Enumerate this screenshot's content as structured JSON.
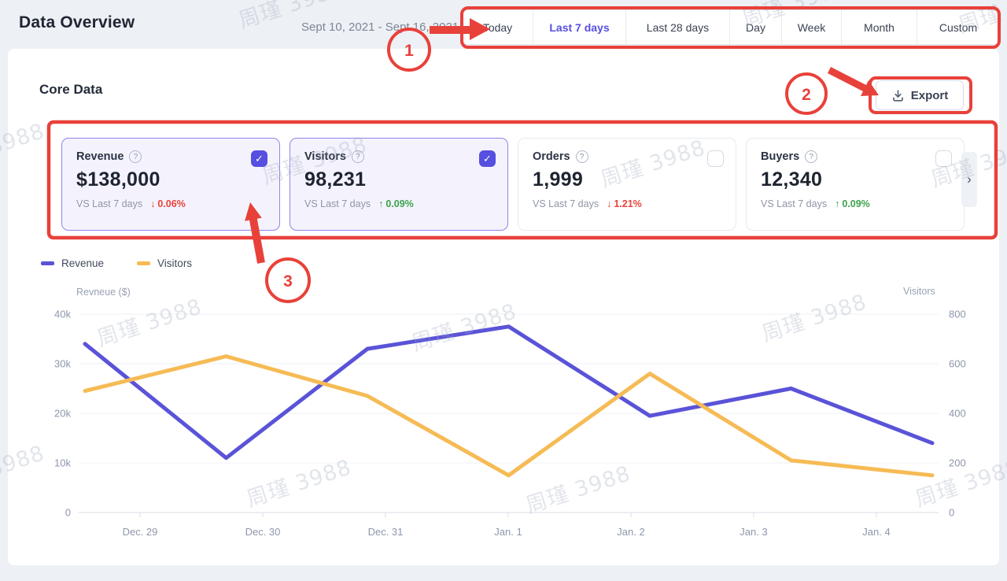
{
  "header": {
    "title": "Data Overview",
    "date_range": "Sept 10, 2021 - Sept 16, 2021",
    "tabs": [
      {
        "label": "Today",
        "active": false
      },
      {
        "label": "Last 7 days",
        "active": true
      },
      {
        "label": "Last 28 days",
        "active": false
      },
      {
        "label": "Day",
        "active": false
      },
      {
        "label": "Week",
        "active": false
      },
      {
        "label": "Month",
        "active": false
      },
      {
        "label": "Custom",
        "active": false
      }
    ]
  },
  "core": {
    "title": "Core Data",
    "export_label": "Export"
  },
  "cards": [
    {
      "title": "Revenue",
      "value": "$138,000",
      "compare": "VS Last 7 days",
      "delta": "0.06%",
      "direction": "down",
      "checked": true,
      "highlight": true
    },
    {
      "title": "Visitors",
      "value": "98,231",
      "compare": "VS Last 7 days",
      "delta": "0.09%",
      "direction": "up",
      "checked": true,
      "highlight": true
    },
    {
      "title": "Orders",
      "value": "1,999",
      "compare": "VS Last 7 days",
      "delta": "1.21%",
      "direction": "down",
      "checked": false,
      "highlight": false
    },
    {
      "title": "Buyers",
      "value": "12,340",
      "compare": "VS Last 7 days",
      "delta": "0.09%",
      "direction": "up",
      "checked": false,
      "highlight": false
    }
  ],
  "legend": [
    {
      "label": "Revenue",
      "color": "#5a53d8"
    },
    {
      "label": "Visitors",
      "color": "#f6bb55"
    }
  ],
  "chart_data": {
    "type": "line",
    "x": [
      "Dec. 29",
      "Dec. 30",
      "Dec. 31",
      "Jan. 1",
      "Jan. 2",
      "Jan. 3",
      "Jan. 4"
    ],
    "series": [
      {
        "name": "Revenue",
        "axis": "left",
        "color": "#5a53d8",
        "values": [
          34000,
          11000,
          33000,
          37500,
          19500,
          25000,
          14000
        ]
      },
      {
        "name": "Visitors",
        "axis": "right",
        "color": "#f6bb55",
        "values": [
          490,
          630,
          470,
          150,
          560,
          210,
          150
        ]
      }
    ],
    "left_axis": {
      "label": "Revneue ($)",
      "ticks": [
        "40k",
        "30k",
        "20k",
        "10k",
        "0"
      ],
      "max": 40000
    },
    "right_axis": {
      "label": "Visitors",
      "ticks": [
        "800",
        "600",
        "400",
        "200",
        "0"
      ],
      "max": 800
    },
    "grid": true,
    "legend_position": "top-left"
  },
  "annotations": {
    "steps": [
      "1",
      "2",
      "3"
    ],
    "color": "#e8413a"
  },
  "icons": {
    "check": "✓",
    "chevron_right": "›",
    "help": "?",
    "arrow_up": "↑",
    "arrow_down": "↓"
  },
  "watermark": {
    "text": "周瑾 3988"
  },
  "colors": {
    "accent": "#564fe0",
    "revenue_line": "#5a53d8",
    "visitors_line": "#f6bb55",
    "negative": "#e8433c",
    "positive": "#3da24c",
    "annotation": "#e8413a",
    "page_bg": "#edf0f5",
    "panel_bg": "#ffffff"
  }
}
